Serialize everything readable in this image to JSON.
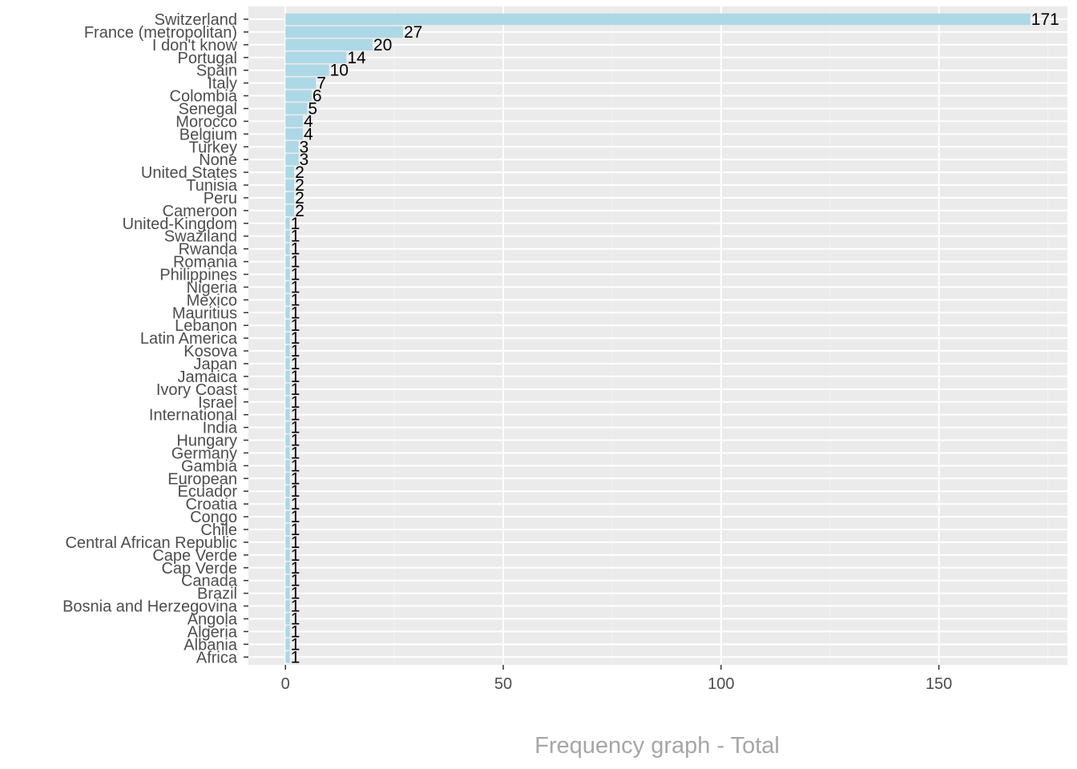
{
  "chart_data": {
    "type": "bar",
    "orientation": "horizontal",
    "title": "",
    "xlabel": "Frequency graph - Total",
    "ylabel": "",
    "xlim": [
      -8.5,
      179.5
    ],
    "x_ticks": [
      0,
      50,
      100,
      150
    ],
    "grid": true,
    "colors": {
      "bar": "#add8e6",
      "panel": "#ebebeb",
      "grid_major": "#ffffff",
      "grid_minor": "#f2f2f2",
      "axis_text": "#4d4d4d",
      "axis_title": "#a6a6a6",
      "value_label": "#000000"
    },
    "categories": [
      "Switzerland",
      "France (metropolitan)",
      "I don't know",
      "Portugal",
      "Spain",
      "Italy",
      "Colombia",
      "Senegal",
      "Morocco",
      "Belgium",
      "Turkey",
      "None",
      "United States",
      "Tunisia",
      "Peru",
      "Cameroon",
      "United-Kingdom",
      "Swaziland",
      "Rwanda",
      "Romania",
      "Philippines",
      "Nigeria",
      "Mexico",
      "Mauritius",
      "Lebanon",
      "Latin America",
      "Kosova",
      "Japan",
      "Jamaica",
      "Ivory Coast",
      "Israel",
      "International",
      "India",
      "Hungary",
      "Germany",
      "Gambia",
      "European",
      "Ecuador",
      "Croatia",
      "Congo",
      "Chile",
      "Central African Republic",
      "Cape Verde",
      "Cap Verde",
      "Canada",
      "Brazil",
      "Bosnia and Herzegovina",
      "Angola",
      "Algeria",
      "Albania",
      "Africa"
    ],
    "values": [
      171,
      27,
      20,
      14,
      10,
      7,
      6,
      5,
      4,
      4,
      3,
      3,
      2,
      2,
      2,
      2,
      1,
      1,
      1,
      1,
      1,
      1,
      1,
      1,
      1,
      1,
      1,
      1,
      1,
      1,
      1,
      1,
      1,
      1,
      1,
      1,
      1,
      1,
      1,
      1,
      1,
      1,
      1,
      1,
      1,
      1,
      1,
      1,
      1,
      1,
      1
    ]
  }
}
